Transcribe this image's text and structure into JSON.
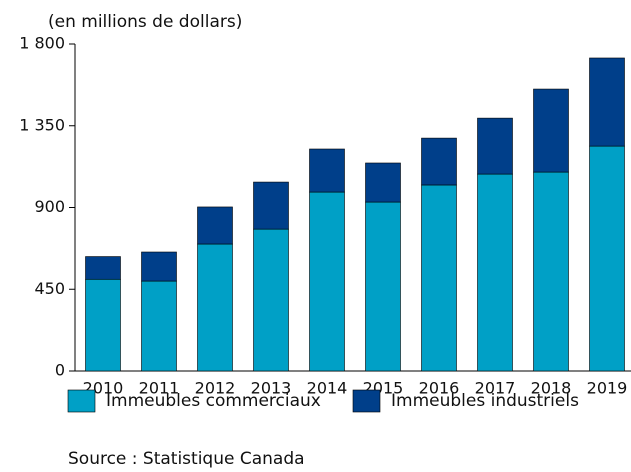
{
  "chart_data": {
    "type": "stacked-bar",
    "y_label": "(en millions de dollars)",
    "source": "Source : Statistique Canada",
    "categories": [
      "2010",
      "2011",
      "2012",
      "2013",
      "2014",
      "2015",
      "2016",
      "2017",
      "2018",
      "2019"
    ],
    "series": [
      {
        "name": "Immeubles commerciaux",
        "color": "#00a0c6",
        "values": [
          505,
          495,
          699,
          781,
          985,
          930,
          1024,
          1084,
          1095,
          1238
        ]
      },
      {
        "name": "Immeubles industriels",
        "color": "#003f8a",
        "values": [
          125,
          160,
          204,
          259,
          237,
          215,
          258,
          308,
          457,
          485
        ]
      }
    ],
    "ylim": [
      0,
      1800
    ],
    "yticks": [
      0,
      450,
      900,
      {
        "value": 1350,
        "label": "1 350"
      },
      {
        "value": 1800,
        "label": "1 800"
      }
    ]
  }
}
